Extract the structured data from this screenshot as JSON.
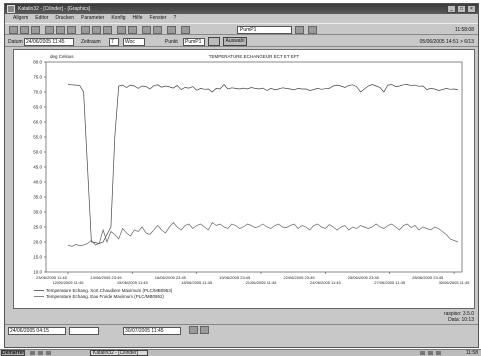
{
  "window": {
    "title": "Katalin32 - [Cilinder] - [Graphics]",
    "controls": [
      "_",
      "□",
      "×"
    ]
  },
  "menu": [
    "Allgem",
    "Editor",
    "Drucken",
    "Parameter",
    "Konfig",
    "Hilfe",
    "Fenster",
    "?"
  ],
  "toolbar": {
    "device_field": "PumP1",
    "time": "11:58:08"
  },
  "filter": {
    "start_label": "Datum",
    "start_value": "24/06/2005 11:45",
    "period_label": "Zeitraum",
    "period_value": "7",
    "unit_value": "Woc",
    "select_label": "Punkt",
    "select_value": "PumP1",
    "apply_label": "Auswahl",
    "right_info": "05/06/2005 14:51 > 6/13"
  },
  "chart": {
    "title": "TEMPERATURE ECHANGEUR ECT ET EFT",
    "y_unit_label": "deg Celsius",
    "y_ticks": [
      "80.0",
      "75.0",
      "70.0",
      "65.0",
      "60.0",
      "55.0",
      "50.0",
      "45.0",
      "40.0",
      "35.0",
      "30.0",
      "25.0",
      "20.0",
      "15.0",
      "10.0"
    ],
    "x_ticks_top": [
      "13/06/2005 23:45",
      "16/06/2005 23:45",
      "19/06/2005 23:45",
      "22/06/2005 23:45",
      "25/06/2005 23:45",
      "28/06/2005 23:45"
    ],
    "x_ticks_bottom": [
      "12/06/2005 11:45",
      "15/06/2005 11:45",
      "18/06/2005 11:45",
      "21/06/2005 11:45",
      "24/06/2005 11:45",
      "27/06/2005 11:45",
      "30/06/2005 11:45"
    ],
    "first_x_label": "23/06/2005 11:45",
    "legend": [
      "Temperature Echang. Sort.Chaudiere Maximum (PLC/MB0953)",
      "Temperature Echang. Eau Froide Maximum (PLC/MB0952)"
    ]
  },
  "chart_data": {
    "type": "line",
    "title": "TEMPERATURE ECHANGEUR ECT ET EFT",
    "ylabel": "deg Celsius",
    "ylim": [
      10,
      80
    ],
    "x_start": "11/06/2005 11:45",
    "x_end": "30/06/2005 11:45",
    "series": [
      {
        "name": "Temperature Echang. Sort.Chaudiere Maximum (PLC/MB0953)",
        "y": [
          72.5,
          72.4,
          72.3,
          72.2,
          70.0,
          45.0,
          20.0,
          19.8,
          19.5,
          20.0,
          22.5,
          25.0,
          55.0,
          72.0,
          72.3,
          71.5,
          72.3,
          72.0,
          71.2,
          72.0,
          71.8,
          71.0,
          72.1,
          72.4,
          71.6,
          72.0,
          71.7,
          71.3,
          72.2,
          70.8,
          71.5,
          71.3,
          71.8,
          70.6,
          71.2,
          70.9,
          71.0,
          70.0,
          71.2,
          71.0,
          72.5,
          71.0,
          71.4,
          71.2,
          71.0,
          71.3,
          71.0,
          71.5,
          71.2,
          71.0,
          71.3,
          70.5,
          71.2,
          70.8,
          71.0,
          71.4,
          71.2,
          71.0,
          70.7,
          71.2,
          71.0,
          71.0,
          70.5,
          70.8,
          71.2,
          70.9,
          71.1,
          71.2,
          72.0,
          72.3,
          72.0,
          71.5,
          72.2,
          72.4,
          71.8,
          70.0,
          71.0,
          72.0,
          72.5,
          72.0,
          71.5,
          70.0,
          72.3,
          72.5,
          71.8,
          72.0,
          72.4,
          72.5,
          72.1,
          72.3,
          71.9,
          72.0,
          70.8,
          71.2,
          71.0,
          70.5,
          70.8,
          71.2,
          70.9,
          71.0,
          70.7
        ]
      },
      {
        "name": "Temperature Echang. Eau Froide Maximum (PLC/MB0952)",
        "y": [
          19.0,
          18.5,
          19.2,
          18.8,
          19.0,
          19.5,
          20.5,
          19.0,
          19.5,
          24.0,
          20.0,
          23.5,
          22.5,
          21.0,
          24.5,
          23.0,
          22.0,
          24.0,
          23.5,
          25.0,
          23.0,
          22.5,
          24.0,
          25.5,
          24.0,
          23.0,
          25.0,
          26.5,
          25.0,
          24.0,
          25.5,
          26.0,
          24.5,
          25.5,
          26.0,
          25.0,
          24.0,
          26.5,
          25.5,
          26.0,
          25.0,
          24.5,
          26.0,
          25.5,
          24.5,
          25.0,
          26.0,
          25.5,
          24.8,
          25.2,
          26.0,
          25.0,
          24.5,
          25.5,
          26.0,
          25.0,
          24.8,
          25.5,
          26.0,
          24.5,
          25.5,
          25.0,
          24.0,
          25.5,
          26.0,
          25.0,
          24.5,
          25.8,
          25.0,
          24.0,
          25.0,
          25.5,
          24.0,
          25.0,
          24.5,
          25.5,
          25.0,
          24.5,
          25.0,
          26.0,
          25.0,
          24.5,
          25.5,
          26.0,
          25.0,
          24.0,
          25.5,
          26.0,
          24.8,
          25.5,
          24.0,
          25.0,
          24.5,
          24.0,
          25.0,
          24.5,
          23.5,
          22.5,
          21.0,
          20.5,
          20.0
        ]
      }
    ]
  },
  "bottom": {
    "from_value": "24/06/2005 04:15",
    "to_value": "30/07/2005 11:45"
  },
  "status": {
    "line1": "raspiso: 3.5.0",
    "line2": "Data: 10:13"
  },
  "taskbar": {
    "start_label": "Démarrer",
    "task_label": "Katalin32 - [Cilinder]",
    "clock": "11:58"
  }
}
